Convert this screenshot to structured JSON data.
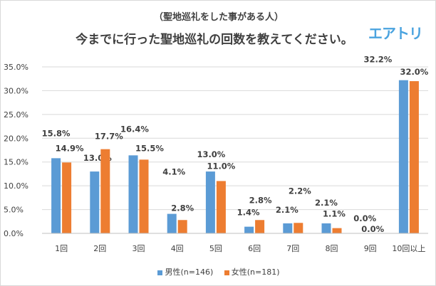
{
  "subtitle": "（聖地巡礼をした事がある人）",
  "logo_text": "エアトリ",
  "chart_data": {
    "type": "bar",
    "title": "今までに行った聖地巡礼の回数を教えてください。",
    "categories": [
      "1回",
      "2回",
      "3回",
      "4回",
      "5回",
      "6回",
      "7回",
      "8回",
      "9回",
      "10回以上"
    ],
    "series": [
      {
        "name": "男性(n=146)",
        "color": "#5b9bd5",
        "values": [
          15.8,
          13.0,
          16.4,
          4.1,
          13.0,
          1.4,
          2.1,
          2.1,
          0.0,
          32.2
        ]
      },
      {
        "name": "女性(n=181)",
        "color": "#ed7d31",
        "values": [
          14.9,
          17.7,
          15.5,
          2.8,
          11.0,
          2.8,
          2.2,
          1.1,
          0.0,
          32.0
        ]
      }
    ],
    "ylim": [
      0,
      35
    ],
    "yticks": [
      "0.0%",
      "5.0%",
      "10.0%",
      "15.0%",
      "20.0%",
      "25.0%",
      "30.0%",
      "35.0%"
    ],
    "grid": true,
    "legend": "bottom",
    "data_label_format": "percent-1dp"
  }
}
